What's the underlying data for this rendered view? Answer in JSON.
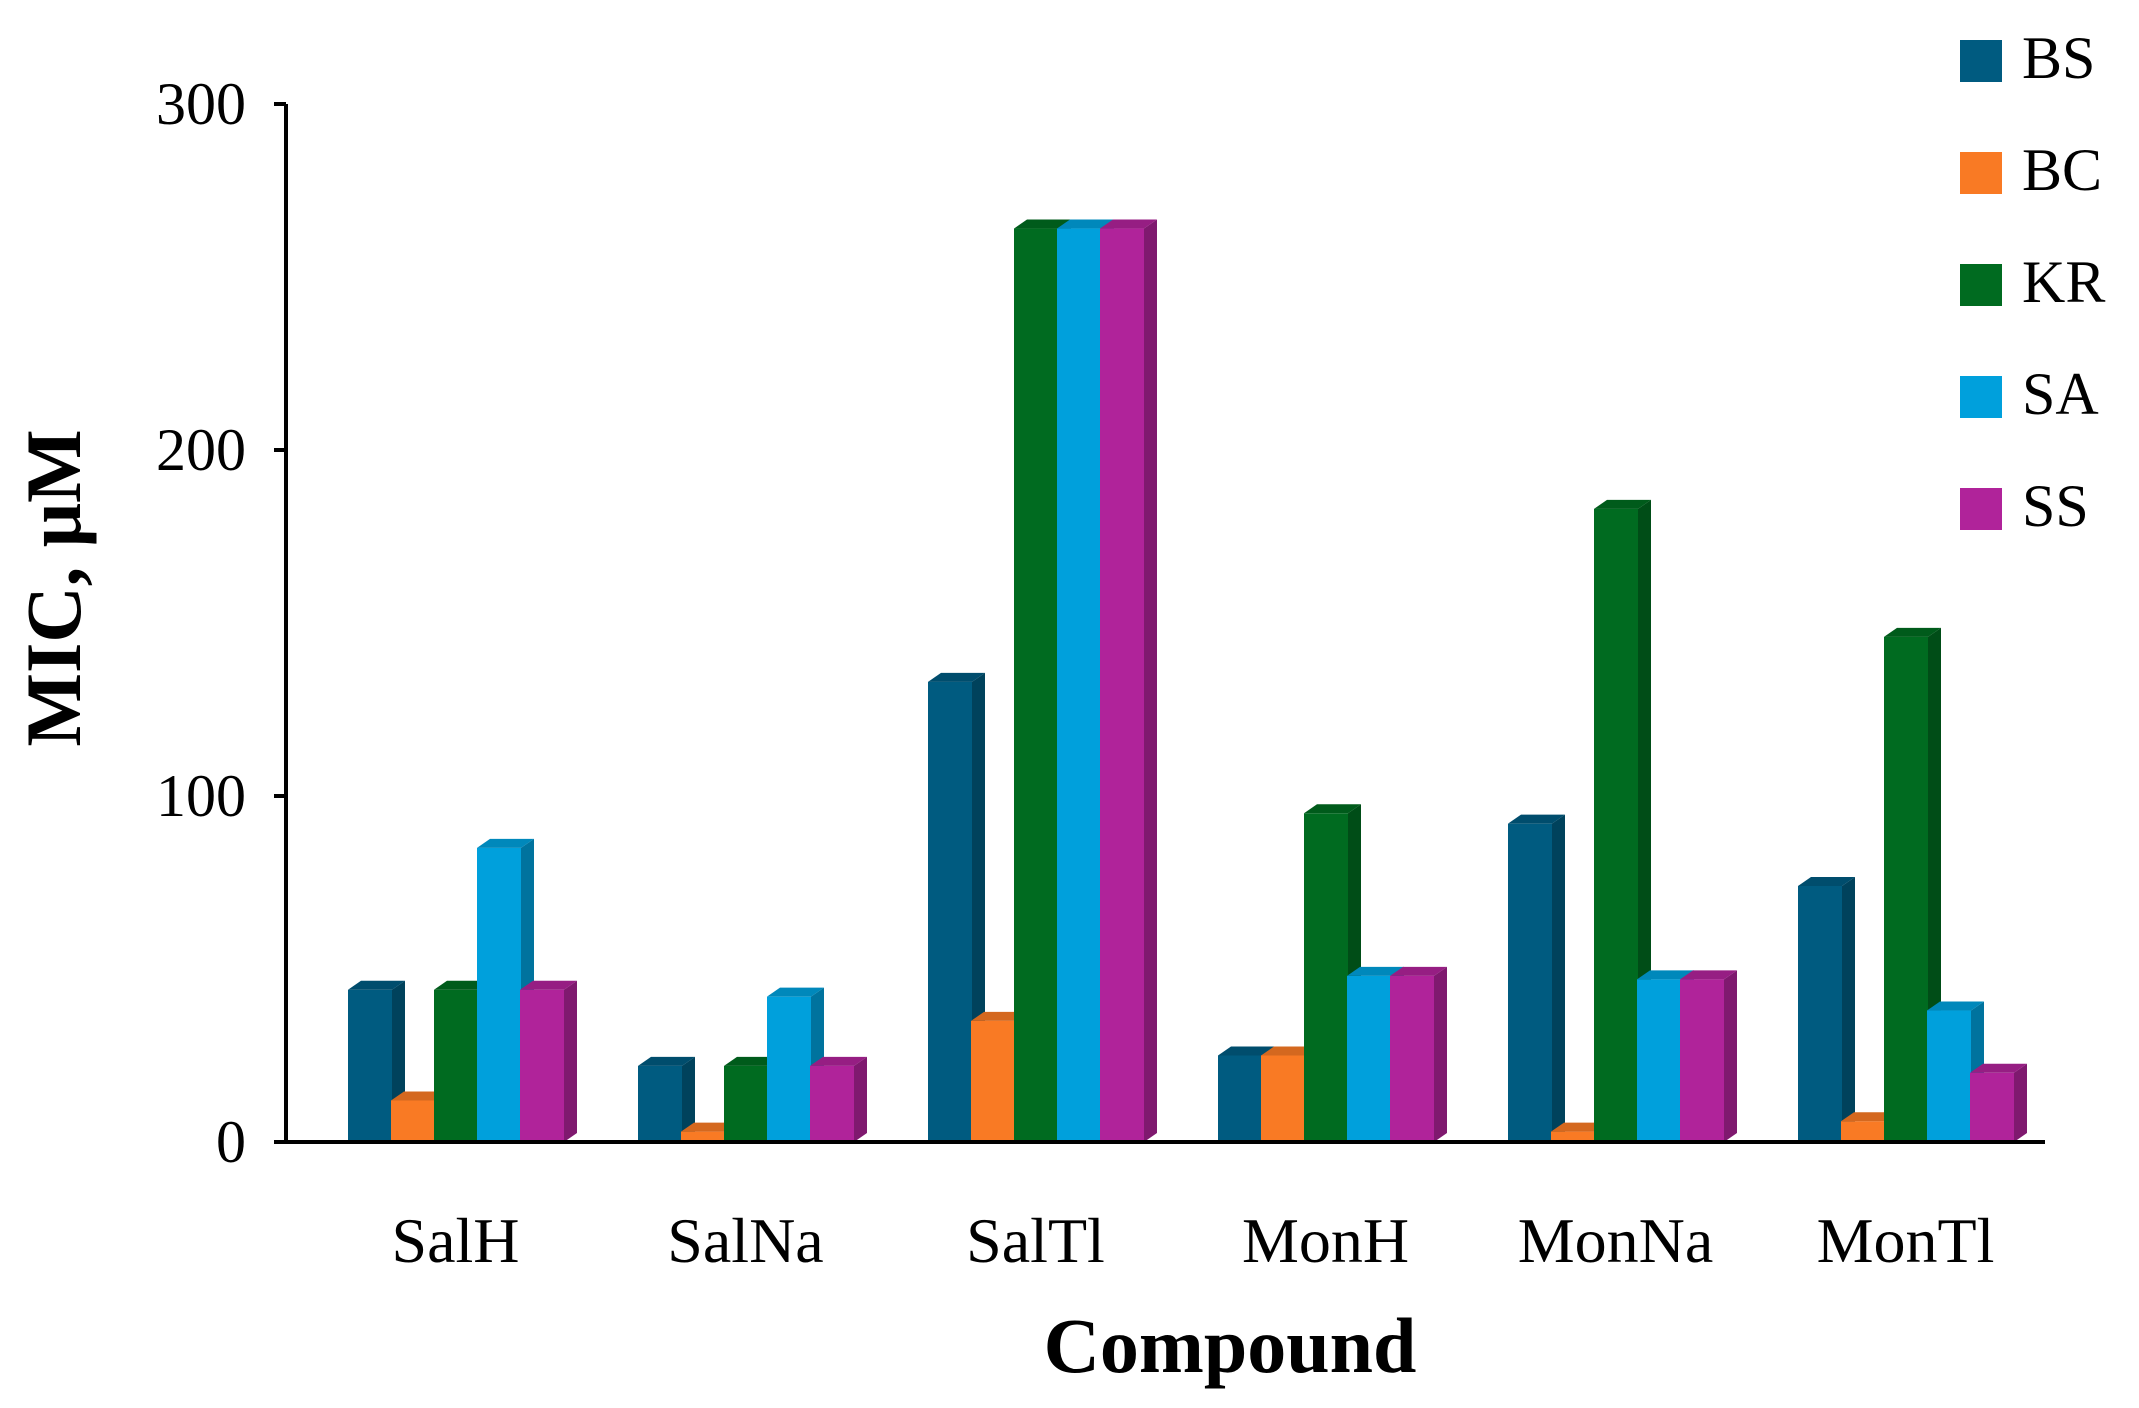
{
  "chart_data": {
    "type": "bar",
    "title": "",
    "xlabel": "Compound",
    "ylabel": "MIC, μM",
    "ylim": [
      0,
      300
    ],
    "yticks": [
      "0",
      "100",
      "200",
      "300"
    ],
    "legend_position": "top-right",
    "grid": false,
    "categories": [
      "SalH",
      "SalNa",
      "SalTl",
      "MonH",
      "MonNa",
      "MonTl"
    ],
    "series": [
      {
        "name": "BS",
        "color": "#005b80",
        "values": [
          44,
          22,
          133,
          25,
          92,
          74
        ]
      },
      {
        "name": "BC",
        "color": "#f97a24",
        "values": [
          12,
          3,
          35,
          25,
          3,
          6
        ]
      },
      {
        "name": "KR",
        "color": "#006b20",
        "values": [
          44,
          22,
          264,
          95,
          183,
          146
        ]
      },
      {
        "name": "SA",
        "color": "#00a0dc",
        "values": [
          85,
          42,
          264,
          48,
          47,
          38
        ]
      },
      {
        "name": "SS",
        "color": "#b0239a",
        "values": [
          44,
          22,
          264,
          48,
          47,
          20
        ]
      }
    ]
  }
}
